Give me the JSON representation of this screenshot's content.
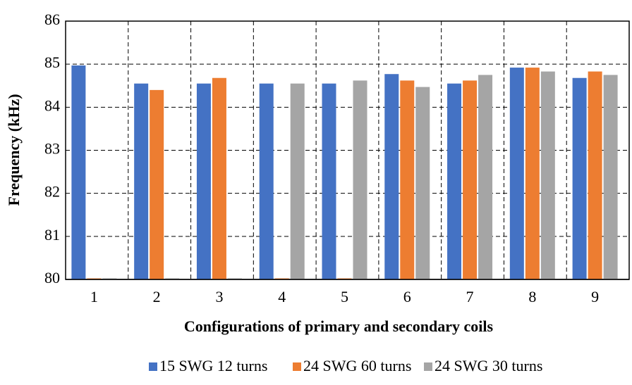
{
  "chart_data": {
    "type": "bar",
    "x_label": "Configurations of primary and secondary coils",
    "y_label": "Frequency (kHz)",
    "categories": [
      "1",
      "2",
      "3",
      "4",
      "5",
      "6",
      "7",
      "8",
      "9"
    ],
    "series": [
      {
        "name": "15 SWG 12 turns",
        "color": "#4472c4",
        "values": [
          84.97,
          84.55,
          84.55,
          84.55,
          84.55,
          84.77,
          84.55,
          84.92,
          84.68
        ]
      },
      {
        "name": "24 SWG 60 turns",
        "color": "#ed7d31",
        "values": [
          80,
          84.4,
          84.68,
          80,
          80,
          84.62,
          84.62,
          84.92,
          84.83
        ]
      },
      {
        "name": "24 SWG 30 turns",
        "color": "#a5a5a5",
        "values": [
          80,
          80,
          80,
          84.55,
          84.62,
          84.47,
          84.75,
          84.83,
          84.75
        ]
      }
    ],
    "ylim": [
      80,
      86
    ],
    "yticks": [
      80,
      81,
      82,
      83,
      84,
      85,
      86
    ],
    "grid": true,
    "legend": "bottom"
  }
}
